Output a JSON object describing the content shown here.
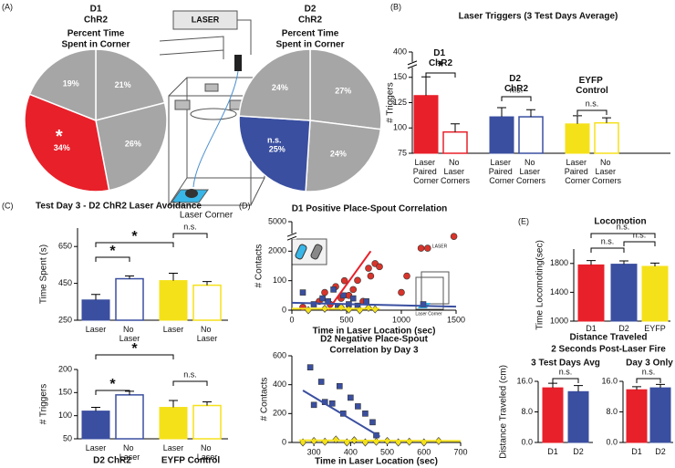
{
  "chart_data": [
    {
      "type": "pie",
      "panel": "(A)",
      "title": "D1",
      "subtitle": "ChR2",
      "label": [
        "Percent Time",
        "Spent in Corner"
      ],
      "values": [
        21,
        26,
        34,
        19
      ],
      "value_labels": [
        "21%",
        "26%",
        "34%",
        "19%"
      ],
      "colors": [
        "#a6a6a6",
        "#a6a6a6",
        "#e8202a",
        "#a6a6a6"
      ],
      "annotation": "*"
    },
    {
      "type": "pie",
      "title": "D2",
      "subtitle": "ChR2",
      "label": [
        "Percent Time",
        "Spent in Corner"
      ],
      "values": [
        27,
        24,
        25,
        24
      ],
      "value_labels": [
        "27%",
        "24%",
        "25%",
        "24%"
      ],
      "colors": [
        "#a6a6a6",
        "#a6a6a6",
        "#3a4fa0",
        "#a6a6a6"
      ],
      "annotation": "n.s."
    },
    {
      "type": "bar",
      "panel": "(B)",
      "title": "Laser Triggers (3 Test Days Average)",
      "ylabel": "# Triggers",
      "groups": [
        "D1 ChR2",
        "D2 ChR2",
        "EYFP Control"
      ],
      "categories": [
        "Laser Paired Corner",
        "No Laser Corners",
        "Laser Paired Corner",
        "No Laser Corners",
        "Laser Paired Corner",
        "No Laser Corners"
      ],
      "values": [
        132,
        96,
        111,
        111,
        104,
        105
      ],
      "errors": [
        22,
        8,
        9,
        7,
        8,
        5
      ],
      "colors": [
        "#e8202a",
        "#e8202a",
        "#3a4fa0",
        "#3a4fa0",
        "#f5e11a",
        "#f5e11a"
      ],
      "outline": [
        false,
        true,
        false,
        true,
        false,
        true
      ],
      "annotations": [
        "*",
        "n.s.",
        "n.s."
      ],
      "ylim": [
        75,
        400
      ],
      "yticks": [
        75,
        100,
        125,
        150,
        400
      ],
      "axis_break": true
    },
    {
      "type": "bar",
      "panel": "(C)",
      "title": "Test Day 3 - D2 ChR2 Laser Avoidance",
      "ylabel": "Time Spent (s)",
      "categories": [
        "Laser",
        "No Laser",
        "Laser",
        "No Laser"
      ],
      "values": [
        360,
        475,
        465,
        440
      ],
      "errors": [
        30,
        15,
        40,
        20
      ],
      "colors": [
        "#3a4fa0",
        "#3a4fa0",
        "#f5e11a",
        "#f5e11a"
      ],
      "outline": [
        false,
        true,
        false,
        true
      ],
      "annotations": [
        "*",
        "*",
        "n.s."
      ],
      "ylim": [
        250,
        750
      ],
      "yticks": [
        250,
        450,
        650
      ]
    },
    {
      "type": "bar",
      "ylabel": "# Triggers",
      "groups": [
        "D2 ChR2",
        "EYFP Control"
      ],
      "categories": [
        "Laser",
        "No Laser",
        "Laser",
        "No Laser"
      ],
      "values": [
        110,
        145,
        118,
        122
      ],
      "errors": [
        8,
        8,
        15,
        8
      ],
      "colors": [
        "#3a4fa0",
        "#3a4fa0",
        "#f5e11a",
        "#f5e11a"
      ],
      "outline": [
        false,
        true,
        false,
        true
      ],
      "annotations": [
        "*",
        "*",
        "n.s."
      ],
      "ylim": [
        50,
        200
      ],
      "yticks": [
        50,
        100,
        150,
        200
      ]
    },
    {
      "type": "scatter",
      "panel": "(D)",
      "title": "D1 Positive Place-Spout Correlation",
      "xlabel": "Time in Laser Location (sec)",
      "ylabel": "# Contacts",
      "xlim": [
        0,
        1500
      ],
      "xticks": [
        0,
        500,
        1000,
        1500
      ],
      "ylim": [
        0,
        5000
      ],
      "yticks": [
        0,
        100,
        2000,
        5000
      ],
      "axis_break": true,
      "series": [
        {
          "color": "#d9342b",
          "marker": "circle",
          "x": [
            100,
            250,
            300,
            350,
            400,
            450,
            480,
            520,
            560,
            600,
            650,
            700,
            720,
            760,
            800,
            1000,
            1050,
            1180,
            1240,
            1480
          ],
          "values": [
            10,
            30,
            60,
            20,
            80,
            40,
            100,
            50,
            70,
            120,
            30,
            900,
            400,
            1200,
            1000,
            60,
            400,
            2300,
            2300,
            3500
          ]
        },
        {
          "color": "#3a4fa0",
          "marker": "square",
          "x": [
            100,
            200,
            280,
            330,
            380,
            420,
            470,
            520,
            560,
            600,
            680,
            1200
          ],
          "values": [
            60,
            20,
            40,
            30,
            70,
            10,
            50,
            20,
            40,
            15,
            30,
            20
          ]
        },
        {
          "color": "#f5e11a",
          "marker": "diamond",
          "x": [
            150,
            300,
            450,
            520,
            620,
            700,
            760
          ],
          "values": [
            0,
            5,
            10,
            2,
            0,
            8,
            3
          ]
        }
      ],
      "fits": [
        {
          "color": "#e8202a",
          "x": [
            330,
            720
          ],
          "values": [
            0,
            2000
          ]
        },
        {
          "color": "#3a4fa0",
          "x": [
            0,
            1500
          ],
          "values": [
            25,
            12
          ]
        },
        {
          "color": "#f5e11a",
          "x": [
            0,
            800
          ],
          "values": [
            5,
            5
          ]
        }
      ]
    },
    {
      "type": "scatter",
      "title": [
        "D2 Negative Place-Spout",
        "Correlation by Day 3"
      ],
      "xlabel": "Time in Laser Location (sec)",
      "ylabel": "# Contacts",
      "xlim": [
        240,
        700
      ],
      "xticks": [
        300,
        400,
        500,
        600,
        700
      ],
      "ylim": [
        0,
        600
      ],
      "yticks": [
        0,
        200,
        400,
        600
      ],
      "series": [
        {
          "color": "#3a4fa0",
          "marker": "square",
          "x": [
            290,
            320,
            330,
            350,
            370,
            380,
            400,
            420,
            440,
            460,
            470,
            300
          ],
          "values": [
            520,
            420,
            280,
            270,
            390,
            200,
            310,
            250,
            200,
            140,
            50,
            260
          ]
        },
        {
          "color": "#f5e11a",
          "marker": "diamond",
          "x": [
            270,
            300,
            330,
            360,
            390,
            410,
            440,
            470,
            500,
            530,
            560,
            600,
            640
          ],
          "values": [
            0,
            10,
            5,
            20,
            0,
            15,
            0,
            5,
            10,
            0,
            5,
            0,
            10
          ]
        }
      ],
      "fits": [
        {
          "color": "#3a4fa0",
          "x": [
            270,
            480
          ],
          "values": [
            360,
            40
          ]
        },
        {
          "color": "#f5e11a",
          "x": [
            260,
            700
          ],
          "values": [
            15,
            10
          ]
        }
      ]
    },
    {
      "type": "bar",
      "panel": "(E)",
      "title": "Locomotion",
      "ylabel": "Time Locomoting(sec)",
      "categories": [
        "D1",
        "D2",
        "EYFP"
      ],
      "values": [
        1780,
        1790,
        1760
      ],
      "errors": [
        60,
        45,
        45
      ],
      "colors": [
        "#e8202a",
        "#3a4fa0",
        "#f5e11a"
      ],
      "annotations": [
        "n.s.",
        "n.s.",
        "n.s."
      ],
      "ylim": [
        1000,
        2000
      ],
      "yticks": [
        1000,
        1400,
        1800
      ]
    },
    {
      "type": "bar",
      "suptitle": [
        "Distance Traveled",
        "2 Seconds Post-Laser Fire"
      ],
      "title": "3 Test Days Avg",
      "ylabel": "Distance Traveled (cm)",
      "categories": [
        "D1",
        "D2"
      ],
      "values": [
        14.3,
        13.3
      ],
      "errors": [
        1.2,
        1.6
      ],
      "colors": [
        "#e8202a",
        "#3a4fa0"
      ],
      "annotations": [
        "n.s."
      ],
      "ylim": [
        0,
        16
      ],
      "yticks": [
        {
          "value": 0,
          "label": "0.0"
        },
        {
          "value": 8,
          "label": "8.0"
        },
        {
          "value": 16,
          "label": "16.0"
        }
      ]
    },
    {
      "type": "bar",
      "title": "Day 3 Only",
      "categories": [
        "D1",
        "D2"
      ],
      "values": [
        13.8,
        14.3
      ],
      "errors": [
        0.8,
        0.9
      ],
      "colors": [
        "#e8202a",
        "#3a4fa0"
      ],
      "annotations": [
        "n.s."
      ],
      "ylim": [
        0,
        16
      ],
      "yticks": [
        {
          "value": 0,
          "label": "0.0"
        },
        {
          "value": 8,
          "label": "8.0"
        },
        {
          "value": 16,
          "label": "16.0"
        }
      ]
    }
  ],
  "diagram": {
    "laser": "LASER",
    "corner": "Laser Corner"
  }
}
